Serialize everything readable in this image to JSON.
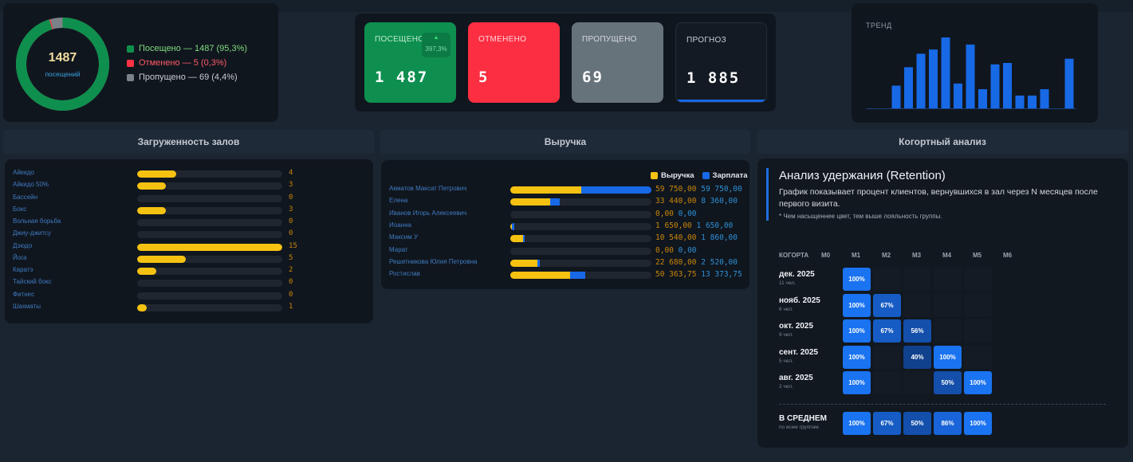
{
  "attendance": {
    "total": "1487",
    "total_caption": "посещений",
    "visited_pct": 95.3,
    "canceled_pct": 0.3,
    "missed_pct": 4.4,
    "legend": [
      {
        "label": "Посещено — 1487 (95,3%)",
        "color": "#0f8f4d",
        "text_color": "#7fdc7f"
      },
      {
        "label": "Отменено — 5 (0,3%)",
        "color": "#ff3344",
        "text_color": "#ff5a66"
      },
      {
        "label": "Пропущено — 69 (4,4%)",
        "color": "#7b8288",
        "text_color": "#c7ccd2"
      }
    ]
  },
  "kpi": {
    "visited": {
      "label": "ПОСЕЩЕНО",
      "value": "1 487",
      "trend_arrow": "▲",
      "trend": "397,3%",
      "color": "#0e8f4f"
    },
    "canceled": {
      "label": "ОТМЕНЕНО",
      "value": "5",
      "color": "#fc2e42"
    },
    "missed": {
      "label": "ПРОПУЩЕНО",
      "value": "69",
      "color": "#67737b"
    },
    "forecast": {
      "label": "ПРОГНОЗ",
      "value": "1 885",
      "color": "#131a23"
    }
  },
  "trend": {
    "title": "ТРЕНД",
    "bar_color": "#1769e6",
    "values": [
      0,
      32,
      58,
      77,
      83,
      100,
      35,
      90,
      27,
      62,
      64,
      18,
      18,
      27,
      0,
      70,
      0
    ]
  },
  "panels": {
    "halls": "Загруженность залов",
    "revenue": "Выручка",
    "cohort": "Когортный анализ"
  },
  "halls": {
    "max": 15,
    "items": [
      {
        "name": "Айкидо",
        "value": 4
      },
      {
        "name": "Айкидо 50%",
        "value": 3
      },
      {
        "name": "Бассейн",
        "value": 0
      },
      {
        "name": "Бокс",
        "value": 3
      },
      {
        "name": "Вольная борьба",
        "value": 0
      },
      {
        "name": "Джиу-джитсу",
        "value": 0
      },
      {
        "name": "Дзюдо",
        "value": 15
      },
      {
        "name": "Йога",
        "value": 5
      },
      {
        "name": "Каратэ",
        "value": 2
      },
      {
        "name": "Тайский бокс",
        "value": 0
      },
      {
        "name": "Фитнес",
        "value": 0
      },
      {
        "name": "Шахматы",
        "value": 1
      }
    ]
  },
  "revenue": {
    "legend_revenue": "Выручка",
    "legend_salary": "Зарплата",
    "revenue_color": "#f5c211",
    "salary_color": "#1769e6",
    "max": 119500,
    "rows": [
      {
        "name": "Акматов Максат Петрович",
        "revenue": 59750,
        "salary": 59750,
        "revenue_text": "59 750,00",
        "salary_text": "59 750,00"
      },
      {
        "name": "Елена",
        "revenue": 33440,
        "salary": 8360,
        "revenue_text": "33 440,00",
        "salary_text": "8 360,00"
      },
      {
        "name": "Иванов Игорь Алексеевич",
        "revenue": 0,
        "salary": 0,
        "revenue_text": "0,00",
        "salary_text": "0,00"
      },
      {
        "name": "Иоанна",
        "revenue": 1650,
        "salary": 1650,
        "revenue_text": "1 650,00",
        "salary_text": "1 650,00"
      },
      {
        "name": "Максим У",
        "revenue": 10540,
        "salary": 1860,
        "revenue_text": "10 540,00",
        "salary_text": "1 860,00"
      },
      {
        "name": "Марат",
        "revenue": 0,
        "salary": 0,
        "revenue_text": "0,00",
        "salary_text": "0,00"
      },
      {
        "name": "Решетникова Юлия Петровна",
        "revenue": 22680,
        "salary": 2520,
        "revenue_text": "22 680,00",
        "salary_text": "2 520,00"
      },
      {
        "name": "Ростислав",
        "revenue": 50363.75,
        "salary": 13373.75,
        "revenue_text": "50 363,75",
        "salary_text": "13 373,75"
      }
    ]
  },
  "cohort": {
    "title": "Анализ удержания (Retention)",
    "description": "График показывает процент клиентов, вернувшихся в зал через N месяцев после первого визита.",
    "note": "* Чем насыщеннее цвет, тем выше лояльность группы.",
    "header_label": "КОГОРТА",
    "months": [
      "M0",
      "M1",
      "M2",
      "M3",
      "M4",
      "M5",
      "M6"
    ],
    "rows": [
      {
        "label": "дек. 2025",
        "sub": "11 чел.",
        "cells": [
          null,
          100,
          null,
          null,
          null,
          null,
          null
        ]
      },
      {
        "label": "нояб. 2025",
        "sub": "6 чел.",
        "cells": [
          null,
          100,
          67,
          null,
          null,
          null,
          null
        ]
      },
      {
        "label": "окт. 2025",
        "sub": "9 чел.",
        "cells": [
          null,
          100,
          67,
          56,
          null,
          null,
          null
        ]
      },
      {
        "label": "сент. 2025",
        "sub": "5 чел.",
        "cells": [
          null,
          100,
          null,
          40,
          100,
          null,
          null
        ]
      },
      {
        "label": "авг. 2025",
        "sub": "2 чел.",
        "cells": [
          null,
          100,
          null,
          null,
          50,
          100,
          null
        ]
      }
    ],
    "average": {
      "label": "В СРЕДНЕМ",
      "sub": "по всем группам",
      "cells": [
        null,
        100,
        67,
        50,
        86,
        100,
        null
      ]
    }
  }
}
